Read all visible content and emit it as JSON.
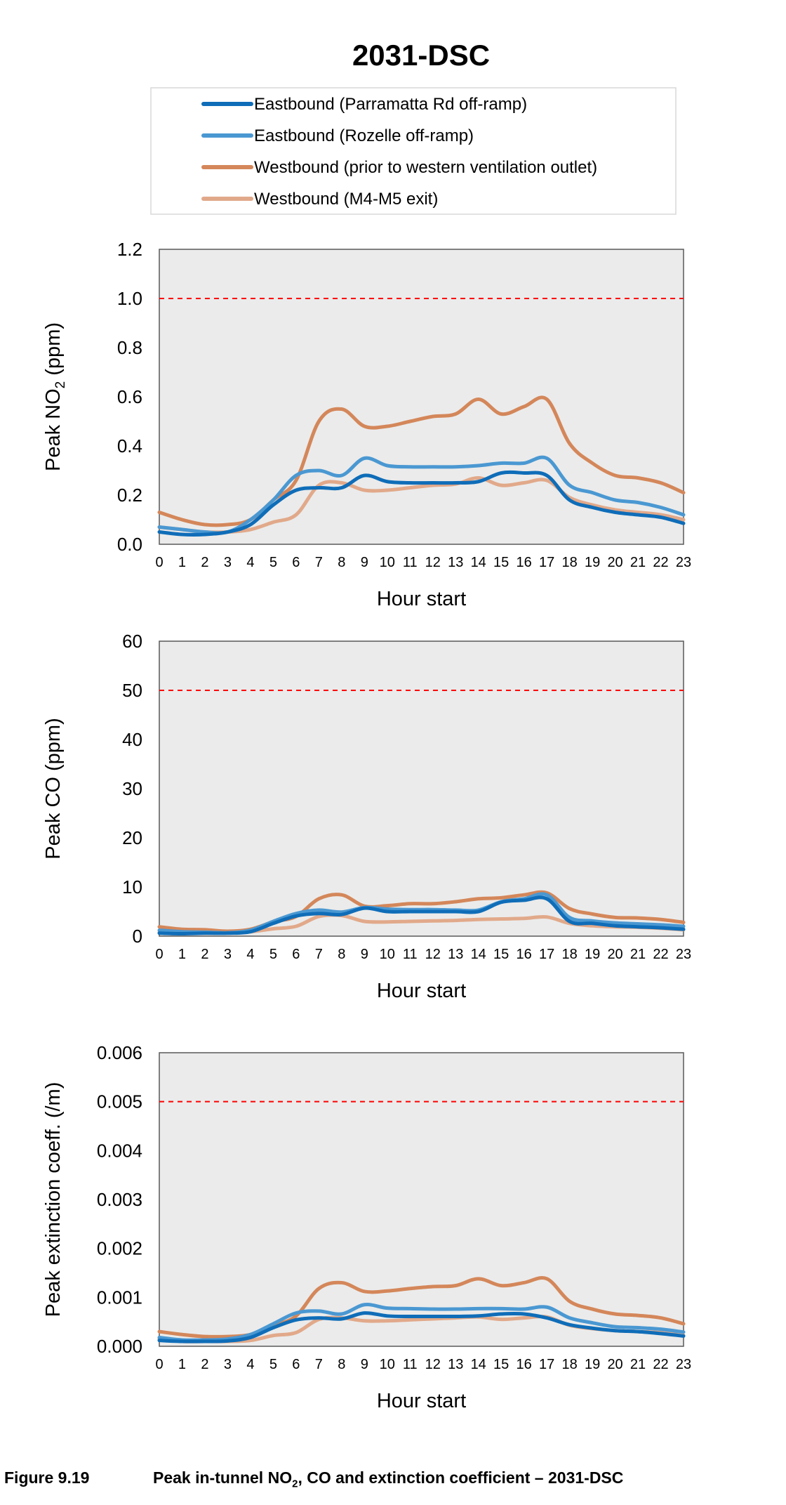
{
  "title": "2031-DSC",
  "colors": {
    "eb_parramatta": "#0F6DB8",
    "eb_rozelle": "#4A98D2",
    "wb_prior": "#D4875A",
    "wb_m4m5": "#E1A98A",
    "limit": "#FF0000",
    "plot_bg": "#EBEBEB"
  },
  "legend": [
    {
      "label": "Eastbound (Parramatta Rd off-ramp)",
      "color_key": "eb_parramatta"
    },
    {
      "label": "Eastbound (Rozelle off-ramp)",
      "color_key": "eb_rozelle"
    },
    {
      "label": "Westbound (prior to western ventilation outlet)",
      "color_key": "wb_prior"
    },
    {
      "label": "Westbound (M4-M5 exit)",
      "color_key": "wb_m4m5"
    }
  ],
  "caption": {
    "number": "Figure 9.19",
    "text_before": "Peak in-tunnel NO",
    "text_sub": "2",
    "text_after": ", CO and extinction coefficient – 2031-DSC"
  },
  "chart_data": [
    {
      "type": "line",
      "xlabel": "Hour start",
      "ylabel_main": "Peak NO",
      "ylabel_sub": "2",
      "ylabel_unit": " (ppm)",
      "x": [
        0,
        1,
        2,
        3,
        4,
        5,
        6,
        7,
        8,
        9,
        10,
        11,
        12,
        13,
        14,
        15,
        16,
        17,
        18,
        19,
        20,
        21,
        22,
        23
      ],
      "ylim": [
        0,
        1.2
      ],
      "yticks": [
        "0.0",
        "0.2",
        "0.4",
        "0.6",
        "0.8",
        "1.0",
        "1.2"
      ],
      "limit": 1.0,
      "series": [
        {
          "name": "Westbound (M4-M5 exit)",
          "color_key": "wb_m4m5",
          "values": [
            0.07,
            0.06,
            0.05,
            0.05,
            0.06,
            0.09,
            0.12,
            0.24,
            0.25,
            0.22,
            0.22,
            0.23,
            0.24,
            0.245,
            0.27,
            0.24,
            0.25,
            0.26,
            0.19,
            0.16,
            0.14,
            0.13,
            0.12,
            0.1
          ]
        },
        {
          "name": "Westbound (prior to western ventilation outlet)",
          "color_key": "wb_prior",
          "values": [
            0.13,
            0.1,
            0.08,
            0.08,
            0.1,
            0.18,
            0.26,
            0.5,
            0.55,
            0.48,
            0.48,
            0.5,
            0.52,
            0.53,
            0.59,
            0.53,
            0.56,
            0.59,
            0.41,
            0.33,
            0.28,
            0.27,
            0.25,
            0.21
          ]
        },
        {
          "name": "Eastbound (Rozelle off-ramp)",
          "color_key": "eb_rozelle",
          "values": [
            0.07,
            0.06,
            0.05,
            0.05,
            0.1,
            0.18,
            0.28,
            0.3,
            0.28,
            0.35,
            0.32,
            0.315,
            0.315,
            0.315,
            0.32,
            0.33,
            0.33,
            0.35,
            0.24,
            0.21,
            0.18,
            0.17,
            0.15,
            0.12
          ]
        },
        {
          "name": "Eastbound (Parramatta Rd off-ramp)",
          "color_key": "eb_parramatta",
          "values": [
            0.05,
            0.04,
            0.04,
            0.05,
            0.08,
            0.16,
            0.22,
            0.23,
            0.23,
            0.28,
            0.255,
            0.25,
            0.25,
            0.25,
            0.255,
            0.29,
            0.29,
            0.28,
            0.18,
            0.15,
            0.13,
            0.12,
            0.11,
            0.085
          ]
        }
      ]
    },
    {
      "type": "line",
      "xlabel": "Hour start",
      "ylabel_main": "Peak CO (ppm)",
      "ylabel_sub": "",
      "ylabel_unit": "",
      "x": [
        0,
        1,
        2,
        3,
        4,
        5,
        6,
        7,
        8,
        9,
        10,
        11,
        12,
        13,
        14,
        15,
        16,
        17,
        18,
        19,
        20,
        21,
        22,
        23
      ],
      "ylim": [
        0,
        60
      ],
      "yticks": [
        "0",
        "10",
        "20",
        "30",
        "40",
        "50",
        "60"
      ],
      "limit": 50,
      "series": [
        {
          "name": "Westbound (M4-M5 exit)",
          "color_key": "wb_m4m5",
          "values": [
            0.8,
            0.6,
            0.6,
            0.7,
            0.9,
            1.5,
            2.0,
            4.0,
            4.2,
            3.0,
            2.9,
            3.0,
            3.1,
            3.2,
            3.4,
            3.5,
            3.6,
            3.9,
            2.6,
            2.1,
            1.9,
            1.8,
            1.6,
            1.3
          ]
        },
        {
          "name": "Westbound (prior to western ventilation outlet)",
          "color_key": "wb_prior",
          "values": [
            1.9,
            1.4,
            1.3,
            1.0,
            1.4,
            2.9,
            4.0,
            7.6,
            8.4,
            6.1,
            6.2,
            6.6,
            6.6,
            7.0,
            7.6,
            7.8,
            8.4,
            8.8,
            5.6,
            4.5,
            3.8,
            3.7,
            3.4,
            2.8
          ]
        },
        {
          "name": "Eastbound (Rozelle off-ramp)",
          "color_key": "eb_rozelle",
          "values": [
            1.2,
            0.9,
            0.8,
            0.7,
            1.2,
            3.0,
            4.6,
            5.3,
            4.9,
            5.8,
            5.5,
            5.4,
            5.4,
            5.3,
            5.3,
            7.0,
            7.6,
            8.4,
            3.8,
            3.1,
            2.7,
            2.5,
            2.3,
            2.0
          ]
        },
        {
          "name": "Eastbound (Parramatta Rd off-ramp)",
          "color_key": "eb_parramatta",
          "values": [
            0.6,
            0.5,
            0.6,
            0.6,
            0.9,
            2.6,
            4.1,
            4.6,
            4.4,
            5.7,
            5.0,
            5.0,
            5.0,
            5.0,
            5.0,
            6.9,
            7.3,
            7.6,
            3.0,
            2.6,
            2.1,
            1.9,
            1.7,
            1.4
          ]
        }
      ]
    },
    {
      "type": "line",
      "xlabel": "Hour start",
      "ylabel_main": "Peak extinction coeff.  (/m)",
      "ylabel_sub": "",
      "ylabel_unit": "",
      "x": [
        0,
        1,
        2,
        3,
        4,
        5,
        6,
        7,
        8,
        9,
        10,
        11,
        12,
        13,
        14,
        15,
        16,
        17,
        18,
        19,
        20,
        21,
        22,
        23
      ],
      "ylim": [
        0,
        0.006
      ],
      "yticks": [
        "0.000",
        "0.001",
        "0.002",
        "0.003",
        "0.004",
        "0.005",
        "0.006"
      ],
      "limit": 0.005,
      "series": [
        {
          "name": "Westbound (M4-M5 exit)",
          "color_key": "wb_m4m5",
          "values": [
            0.00015,
            0.0001,
            0.0001,
            0.0001,
            0.00012,
            0.00022,
            0.00028,
            0.00055,
            0.00058,
            0.00052,
            0.00052,
            0.00054,
            0.00056,
            0.00058,
            0.0006,
            0.00055,
            0.00058,
            0.0006,
            0.00043,
            0.00036,
            0.00032,
            0.0003,
            0.00028,
            0.00022
          ]
        },
        {
          "name": "Westbound (prior to western ventilation outlet)",
          "color_key": "wb_prior",
          "values": [
            0.0003,
            0.00024,
            0.0002,
            0.0002,
            0.00024,
            0.00042,
            0.00062,
            0.00118,
            0.0013,
            0.00112,
            0.00113,
            0.00118,
            0.00122,
            0.00124,
            0.00138,
            0.00124,
            0.0013,
            0.00138,
            0.00092,
            0.00076,
            0.00066,
            0.00063,
            0.00058,
            0.00046
          ]
        },
        {
          "name": "Eastbound (Rozelle off-ramp)",
          "color_key": "eb_rozelle",
          "values": [
            0.00018,
            0.00013,
            0.00013,
            0.00015,
            0.00024,
            0.00046,
            0.00068,
            0.00072,
            0.00066,
            0.00085,
            0.00078,
            0.00077,
            0.00076,
            0.00076,
            0.00077,
            0.00077,
            0.00076,
            0.0008,
            0.00058,
            0.00048,
            0.0004,
            0.00038,
            0.00035,
            0.00029
          ]
        },
        {
          "name": "Eastbound (Parramatta Rd off-ramp)",
          "color_key": "eb_parramatta",
          "values": [
            0.00012,
            0.0001,
            0.0001,
            0.00011,
            0.00018,
            0.00038,
            0.00054,
            0.00058,
            0.00056,
            0.00068,
            0.00062,
            0.00061,
            0.00061,
            0.00061,
            0.00062,
            0.00066,
            0.00066,
            0.00058,
            0.00044,
            0.00037,
            0.00032,
            0.0003,
            0.00026,
            0.00021
          ]
        }
      ]
    }
  ]
}
